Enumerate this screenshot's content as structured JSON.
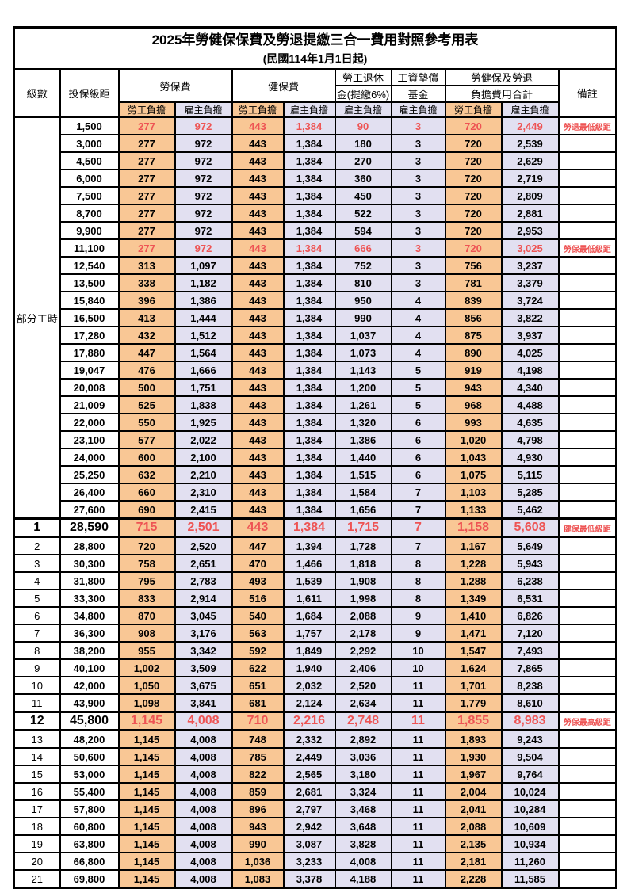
{
  "title": "2025年勞健保保費及勞退提繳三合一費用對照參考用表",
  "subtitle": "(民國114年1月1日起)",
  "header": {
    "level": "級數",
    "bracket": "投保級距",
    "labor_insurance": "勞保費",
    "health_insurance": "健保費",
    "pension_line1": "勞工退休",
    "pension_line2": "金(提繳6%)",
    "wage_fund_line1": "工資墊償",
    "wage_fund_line2": "基金",
    "total_line1": "勞健保及勞退",
    "total_line2": "負擔費用合計",
    "remark": "備註",
    "employee": "勞工負擔",
    "employer": "雇主負擔"
  },
  "section_label": "部分工時",
  "colors": {
    "employee_bg": "#F9C795",
    "employer_bg": "#E2E0F1",
    "highlight_red": "#EE5454",
    "border": "#000000"
  },
  "rows": [
    {
      "level": "",
      "bracket": "1,500",
      "values": [
        "277",
        "972",
        "443",
        "1,384",
        "90",
        "3",
        "720",
        "2,449"
      ],
      "remark": "勞退最低級距",
      "style": "red"
    },
    {
      "level": "",
      "bracket": "3,000",
      "values": [
        "277",
        "972",
        "443",
        "1,384",
        "180",
        "3",
        "720",
        "2,539"
      ],
      "remark": "",
      "style": ""
    },
    {
      "level": "",
      "bracket": "4,500",
      "values": [
        "277",
        "972",
        "443",
        "1,384",
        "270",
        "3",
        "720",
        "2,629"
      ],
      "remark": "",
      "style": ""
    },
    {
      "level": "",
      "bracket": "6,000",
      "values": [
        "277",
        "972",
        "443",
        "1,384",
        "360",
        "3",
        "720",
        "2,719"
      ],
      "remark": "",
      "style": ""
    },
    {
      "level": "",
      "bracket": "7,500",
      "values": [
        "277",
        "972",
        "443",
        "1,384",
        "450",
        "3",
        "720",
        "2,809"
      ],
      "remark": "",
      "style": ""
    },
    {
      "level": "",
      "bracket": "8,700",
      "values": [
        "277",
        "972",
        "443",
        "1,384",
        "522",
        "3",
        "720",
        "2,881"
      ],
      "remark": "",
      "style": ""
    },
    {
      "level": "",
      "bracket": "9,900",
      "values": [
        "277",
        "972",
        "443",
        "1,384",
        "594",
        "3",
        "720",
        "2,953"
      ],
      "remark": "",
      "style": ""
    },
    {
      "level": "",
      "bracket": "11,100",
      "values": [
        "277",
        "972",
        "443",
        "1,384",
        "666",
        "3",
        "720",
        "3,025"
      ],
      "remark": "勞保最低級距",
      "style": "red"
    },
    {
      "level": "",
      "bracket": "12,540",
      "values": [
        "313",
        "1,097",
        "443",
        "1,384",
        "752",
        "3",
        "756",
        "3,237"
      ],
      "remark": "",
      "style": ""
    },
    {
      "level": "",
      "bracket": "13,500",
      "values": [
        "338",
        "1,182",
        "443",
        "1,384",
        "810",
        "3",
        "781",
        "3,379"
      ],
      "remark": "",
      "style": ""
    },
    {
      "level": "",
      "bracket": "15,840",
      "values": [
        "396",
        "1,386",
        "443",
        "1,384",
        "950",
        "4",
        "839",
        "3,724"
      ],
      "remark": "",
      "style": ""
    },
    {
      "level": "",
      "bracket": "16,500",
      "values": [
        "413",
        "1,444",
        "443",
        "1,384",
        "990",
        "4",
        "856",
        "3,822"
      ],
      "remark": "",
      "style": ""
    },
    {
      "level": "",
      "bracket": "17,280",
      "values": [
        "432",
        "1,512",
        "443",
        "1,384",
        "1,037",
        "4",
        "875",
        "3,937"
      ],
      "remark": "",
      "style": ""
    },
    {
      "level": "",
      "bracket": "17,880",
      "values": [
        "447",
        "1,564",
        "443",
        "1,384",
        "1,073",
        "4",
        "890",
        "4,025"
      ],
      "remark": "",
      "style": ""
    },
    {
      "level": "",
      "bracket": "19,047",
      "values": [
        "476",
        "1,666",
        "443",
        "1,384",
        "1,143",
        "5",
        "919",
        "4,198"
      ],
      "remark": "",
      "style": ""
    },
    {
      "level": "",
      "bracket": "20,008",
      "values": [
        "500",
        "1,751",
        "443",
        "1,384",
        "1,200",
        "5",
        "943",
        "4,340"
      ],
      "remark": "",
      "style": ""
    },
    {
      "level": "",
      "bracket": "21,009",
      "values": [
        "525",
        "1,838",
        "443",
        "1,384",
        "1,261",
        "5",
        "968",
        "4,488"
      ],
      "remark": "",
      "style": ""
    },
    {
      "level": "",
      "bracket": "22,000",
      "values": [
        "550",
        "1,925",
        "443",
        "1,384",
        "1,320",
        "6",
        "993",
        "4,635"
      ],
      "remark": "",
      "style": ""
    },
    {
      "level": "",
      "bracket": "23,100",
      "values": [
        "577",
        "2,022",
        "443",
        "1,384",
        "1,386",
        "6",
        "1,020",
        "4,798"
      ],
      "remark": "",
      "style": ""
    },
    {
      "level": "",
      "bracket": "24,000",
      "values": [
        "600",
        "2,100",
        "443",
        "1,384",
        "1,440",
        "6",
        "1,043",
        "4,930"
      ],
      "remark": "",
      "style": ""
    },
    {
      "level": "",
      "bracket": "25,250",
      "values": [
        "632",
        "2,210",
        "443",
        "1,384",
        "1,515",
        "6",
        "1,075",
        "5,115"
      ],
      "remark": "",
      "style": ""
    },
    {
      "level": "",
      "bracket": "26,400",
      "values": [
        "660",
        "2,310",
        "443",
        "1,384",
        "1,584",
        "7",
        "1,103",
        "5,285"
      ],
      "remark": "",
      "style": ""
    },
    {
      "level": "",
      "bracket": "27,600",
      "values": [
        "690",
        "2,415",
        "443",
        "1,384",
        "1,656",
        "7",
        "1,133",
        "5,462"
      ],
      "remark": "",
      "style": ""
    },
    {
      "level": "1",
      "bracket": "28,590",
      "values": [
        "715",
        "2,501",
        "443",
        "1,384",
        "1,715",
        "7",
        "1,158",
        "5,608"
      ],
      "remark": "健保最低級距",
      "style": "red-big"
    },
    {
      "level": "2",
      "bracket": "28,800",
      "values": [
        "720",
        "2,520",
        "447",
        "1,394",
        "1,728",
        "7",
        "1,167",
        "5,649"
      ],
      "remark": "",
      "style": ""
    },
    {
      "level": "3",
      "bracket": "30,300",
      "values": [
        "758",
        "2,651",
        "470",
        "1,466",
        "1,818",
        "8",
        "1,228",
        "5,943"
      ],
      "remark": "",
      "style": ""
    },
    {
      "level": "4",
      "bracket": "31,800",
      "values": [
        "795",
        "2,783",
        "493",
        "1,539",
        "1,908",
        "8",
        "1,288",
        "6,238"
      ],
      "remark": "",
      "style": ""
    },
    {
      "level": "5",
      "bracket": "33,300",
      "values": [
        "833",
        "2,914",
        "516",
        "1,611",
        "1,998",
        "8",
        "1,349",
        "6,531"
      ],
      "remark": "",
      "style": ""
    },
    {
      "level": "6",
      "bracket": "34,800",
      "values": [
        "870",
        "3,045",
        "540",
        "1,684",
        "2,088",
        "9",
        "1,410",
        "6,826"
      ],
      "remark": "",
      "style": ""
    },
    {
      "level": "7",
      "bracket": "36,300",
      "values": [
        "908",
        "3,176",
        "563",
        "1,757",
        "2,178",
        "9",
        "1,471",
        "7,120"
      ],
      "remark": "",
      "style": ""
    },
    {
      "level": "8",
      "bracket": "38,200",
      "values": [
        "955",
        "3,342",
        "592",
        "1,849",
        "2,292",
        "10",
        "1,547",
        "7,493"
      ],
      "remark": "",
      "style": ""
    },
    {
      "level": "9",
      "bracket": "40,100",
      "values": [
        "1,002",
        "3,509",
        "622",
        "1,940",
        "2,406",
        "10",
        "1,624",
        "7,865"
      ],
      "remark": "",
      "style": ""
    },
    {
      "level": "10",
      "bracket": "42,000",
      "values": [
        "1,050",
        "3,675",
        "651",
        "2,032",
        "2,520",
        "11",
        "1,701",
        "8,238"
      ],
      "remark": "",
      "style": ""
    },
    {
      "level": "11",
      "bracket": "43,900",
      "values": [
        "1,098",
        "3,841",
        "681",
        "2,124",
        "2,634",
        "11",
        "1,779",
        "8,610"
      ],
      "remark": "",
      "style": ""
    },
    {
      "level": "12",
      "bracket": "45,800",
      "values": [
        "1,145",
        "4,008",
        "710",
        "2,216",
        "2,748",
        "11",
        "1,855",
        "8,983"
      ],
      "remark": "勞保最高級距",
      "style": "red-big"
    },
    {
      "level": "13",
      "bracket": "48,200",
      "values": [
        "1,145",
        "4,008",
        "748",
        "2,332",
        "2,892",
        "11",
        "1,893",
        "9,243"
      ],
      "remark": "",
      "style": ""
    },
    {
      "level": "14",
      "bracket": "50,600",
      "values": [
        "1,145",
        "4,008",
        "785",
        "2,449",
        "3,036",
        "11",
        "1,930",
        "9,504"
      ],
      "remark": "",
      "style": ""
    },
    {
      "level": "15",
      "bracket": "53,000",
      "values": [
        "1,145",
        "4,008",
        "822",
        "2,565",
        "3,180",
        "11",
        "1,967",
        "9,764"
      ],
      "remark": "",
      "style": ""
    },
    {
      "level": "16",
      "bracket": "55,400",
      "values": [
        "1,145",
        "4,008",
        "859",
        "2,681",
        "3,324",
        "11",
        "2,004",
        "10,024"
      ],
      "remark": "",
      "style": ""
    },
    {
      "level": "17",
      "bracket": "57,800",
      "values": [
        "1,145",
        "4,008",
        "896",
        "2,797",
        "3,468",
        "11",
        "2,041",
        "10,284"
      ],
      "remark": "",
      "style": ""
    },
    {
      "level": "18",
      "bracket": "60,800",
      "values": [
        "1,145",
        "4,008",
        "943",
        "2,942",
        "3,648",
        "11",
        "2,088",
        "10,609"
      ],
      "remark": "",
      "style": ""
    },
    {
      "level": "19",
      "bracket": "63,800",
      "values": [
        "1,145",
        "4,008",
        "990",
        "3,087",
        "3,828",
        "11",
        "2,135",
        "10,934"
      ],
      "remark": "",
      "style": ""
    },
    {
      "level": "20",
      "bracket": "66,800",
      "values": [
        "1,145",
        "4,008",
        "1,036",
        "3,233",
        "4,008",
        "11",
        "2,181",
        "11,260"
      ],
      "remark": "",
      "style": ""
    },
    {
      "level": "21",
      "bracket": "69,800",
      "values": [
        "1,145",
        "4,008",
        "1,083",
        "3,378",
        "4,188",
        "11",
        "2,228",
        "11,585"
      ],
      "remark": "",
      "style": ""
    }
  ]
}
